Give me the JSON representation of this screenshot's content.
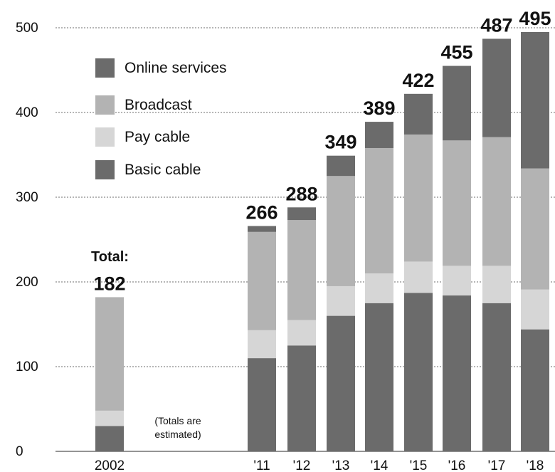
{
  "chart_data": {
    "type": "bar",
    "stacked": true,
    "categories": [
      "2002",
      "'11",
      "'12",
      "'13",
      "'14",
      "'15",
      "'16",
      "'17",
      "'18"
    ],
    "series": [
      {
        "name": "Basic cable",
        "color": "#6b6b6b",
        "values": [
          30,
          110,
          125,
          160,
          175,
          187,
          184,
          175,
          144
        ]
      },
      {
        "name": "Pay cable",
        "color": "#d6d6d6",
        "values": [
          18,
          33,
          30,
          35,
          35,
          37,
          35,
          44,
          47
        ]
      },
      {
        "name": "Broadcast",
        "color": "#b3b3b3",
        "values": [
          134,
          116,
          118,
          130,
          148,
          150,
          148,
          152,
          143
        ]
      },
      {
        "name": "Online services",
        "color": "#6b6b6b",
        "values": [
          0,
          7,
          15,
          24,
          31,
          48,
          88,
          116,
          161
        ]
      }
    ],
    "totals": [
      "182",
      "266",
      "288",
      "349",
      "389",
      "422",
      "455",
      "487",
      "495"
    ],
    "total_label": "Total:",
    "note": [
      "(Totals are",
      "estimated)"
    ],
    "legend": [
      "Online services",
      "Broadcast",
      "Pay cable",
      "Basic cable"
    ],
    "legend_position": "top-left",
    "y_ticks": [
      0,
      100,
      200,
      300,
      400,
      500
    ],
    "ylim": [
      0,
      500
    ],
    "grid": true
  }
}
